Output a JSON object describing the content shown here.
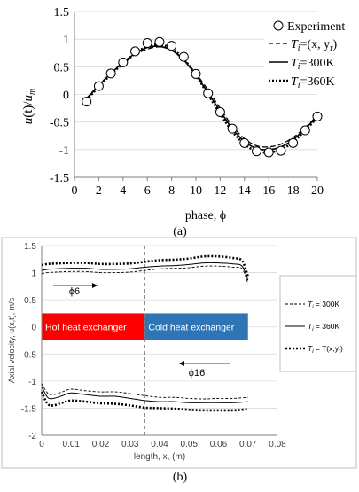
{
  "panel_a_label": "(a)",
  "panel_b_label": "(b)",
  "chart_data": [
    {
      "type": "line",
      "xlabel": "phase, ϕ",
      "ylabel": "u(t)/u_m",
      "ylabel_parts": {
        "u": "u",
        "t": "(t)/",
        "um": "u",
        "m": "m"
      },
      "xlim": [
        0,
        20
      ],
      "ylim": [
        -1.5,
        1.5
      ],
      "xticks": [
        "0",
        "2",
        "4",
        "6",
        "8",
        "10",
        "12",
        "14",
        "16",
        "18",
        "20"
      ],
      "yticks": [
        "1.5",
        "1",
        "0.5",
        "0",
        "-0.5",
        "-1",
        "-1.5"
      ],
      "legend": {
        "placement": "top-right",
        "entries": [
          {
            "label": "Experiment"
          },
          {
            "T": "T",
            "sub": "i",
            "rest": "=(x, y",
            "rsub": "r",
            "close": ")"
          },
          {
            "T": "T",
            "sub": "i",
            "rest": "=300K"
          },
          {
            "T": "T",
            "sub": "i",
            "rest": "=360K"
          }
        ]
      },
      "series": [
        {
          "name": "Experiment",
          "x": [
            1,
            2,
            3,
            4,
            5,
            6,
            7,
            8,
            9,
            10,
            11,
            12,
            13,
            14,
            15,
            16,
            17,
            18,
            19,
            20
          ],
          "y": [
            -0.13,
            0.15,
            0.38,
            0.58,
            0.78,
            0.93,
            0.95,
            0.88,
            0.68,
            0.37,
            0.02,
            -0.32,
            -0.62,
            -0.88,
            -1.03,
            -1.05,
            -1.02,
            -0.88,
            -0.65,
            -0.4
          ]
        },
        {
          "name": "Ti=(x, yr)",
          "x": [
            1,
            2,
            3,
            4,
            5,
            6,
            7,
            8,
            9,
            10,
            11,
            12,
            13,
            14,
            15,
            16,
            17,
            18,
            19,
            20
          ],
          "y": [
            -0.07,
            0.17,
            0.38,
            0.57,
            0.72,
            0.82,
            0.86,
            0.8,
            0.63,
            0.38,
            0.08,
            -0.25,
            -0.57,
            -0.8,
            -0.93,
            -0.95,
            -0.9,
            -0.78,
            -0.6,
            -0.38
          ]
        },
        {
          "name": "Ti=300K",
          "x": [
            1,
            2,
            3,
            4,
            5,
            6,
            7,
            8,
            9,
            10,
            11,
            12,
            13,
            14,
            15,
            16,
            17,
            18,
            19,
            20
          ],
          "y": [
            -0.08,
            0.16,
            0.38,
            0.58,
            0.74,
            0.85,
            0.87,
            0.8,
            0.62,
            0.35,
            0.03,
            -0.3,
            -0.62,
            -0.85,
            -0.98,
            -1.0,
            -0.95,
            -0.82,
            -0.62,
            -0.4
          ]
        },
        {
          "name": "Ti=360K",
          "x": [
            1,
            2,
            3,
            4,
            5,
            6,
            7,
            8,
            9,
            10,
            11,
            12,
            13,
            14,
            15,
            16,
            17,
            18,
            19,
            20
          ],
          "y": [
            -0.1,
            0.14,
            0.36,
            0.56,
            0.74,
            0.87,
            0.9,
            0.83,
            0.64,
            0.35,
            0.0,
            -0.35,
            -0.67,
            -0.9,
            -1.03,
            -1.05,
            -1.0,
            -0.86,
            -0.65,
            -0.42
          ]
        }
      ]
    },
    {
      "type": "line",
      "xlabel": "length, x, (m)",
      "ylabel": "Axial velocity, u(x,t), m/s",
      "xlim": [
        0,
        0.08
      ],
      "ylim": [
        -2,
        1.5
      ],
      "xticks": [
        "0",
        "0.01",
        "0.02",
        "0.03",
        "0.04",
        "0.05",
        "0.06",
        "0.07",
        "0.08"
      ],
      "yticks": [
        "1.5",
        "1",
        "0.5",
        "0",
        "-0.5",
        "-1",
        "-1.5",
        "-2"
      ],
      "divider_x": 0.035,
      "regions": [
        {
          "label": "Hot heat exchanger",
          "x0": 0,
          "x1": 0.035,
          "color": "#ff0000"
        },
        {
          "label": "Cold heat exchanger",
          "x0": 0.035,
          "x1": 0.07,
          "color": "#2e75b6"
        }
      ],
      "annotations": [
        {
          "label": "ϕ6",
          "direction": "right"
        },
        {
          "label": "ϕ16",
          "direction": "left"
        }
      ],
      "legend": {
        "placement": "right",
        "entries": [
          {
            "T": "T",
            "sub": "i",
            "rest": " = 300K"
          },
          {
            "T": "T",
            "sub": "i",
            "rest": " = 360K"
          },
          {
            "T": "T",
            "sub": "i",
            "rest": " = T(x,y",
            "rsub": "r",
            "close": ")"
          }
        ]
      },
      "series": [
        {
          "name": "Ti = 300K (phi6)",
          "x": [
            0,
            0.002,
            0.005,
            0.01,
            0.015,
            0.02,
            0.025,
            0.03,
            0.035,
            0.04,
            0.045,
            0.05,
            0.055,
            0.06,
            0.065,
            0.068,
            0.07
          ],
          "y": [
            0.98,
            1.0,
            1.01,
            1.02,
            1.02,
            1.0,
            1.0,
            1.01,
            1.04,
            1.07,
            1.08,
            1.09,
            1.12,
            1.12,
            1.1,
            1.07,
            0.8
          ]
        },
        {
          "name": "Ti = 360K (phi6)",
          "x": [
            0,
            0.002,
            0.005,
            0.01,
            0.015,
            0.02,
            0.025,
            0.03,
            0.035,
            0.04,
            0.045,
            0.05,
            0.055,
            0.06,
            0.065,
            0.068,
            0.07
          ],
          "y": [
            1.04,
            1.06,
            1.07,
            1.08,
            1.08,
            1.06,
            1.06,
            1.07,
            1.1,
            1.12,
            1.13,
            1.15,
            1.18,
            1.18,
            1.16,
            1.12,
            0.86
          ]
        },
        {
          "name": "Ti = T(x,yr) (phi6)",
          "x": [
            0,
            0.002,
            0.005,
            0.01,
            0.015,
            0.02,
            0.025,
            0.03,
            0.035,
            0.04,
            0.045,
            0.05,
            0.055,
            0.06,
            0.065,
            0.068,
            0.07
          ],
          "y": [
            1.14,
            1.16,
            1.17,
            1.18,
            1.18,
            1.16,
            1.16,
            1.17,
            1.2,
            1.23,
            1.24,
            1.26,
            1.3,
            1.3,
            1.27,
            1.22,
            0.93
          ]
        },
        {
          "name": "Ti = 300K (phi16)",
          "x": [
            0,
            0.002,
            0.004,
            0.007,
            0.01,
            0.015,
            0.02,
            0.025,
            0.03,
            0.035,
            0.04,
            0.045,
            0.05,
            0.055,
            0.06,
            0.065,
            0.07
          ],
          "y": [
            -1.05,
            -1.22,
            -1.25,
            -1.2,
            -1.15,
            -1.18,
            -1.2,
            -1.2,
            -1.23,
            -1.27,
            -1.3,
            -1.3,
            -1.32,
            -1.33,
            -1.32,
            -1.32,
            -1.3
          ]
        },
        {
          "name": "Ti = 360K (phi16)",
          "x": [
            0,
            0.002,
            0.004,
            0.007,
            0.01,
            0.015,
            0.02,
            0.025,
            0.03,
            0.035,
            0.04,
            0.045,
            0.05,
            0.055,
            0.06,
            0.065,
            0.07
          ],
          "y": [
            -1.1,
            -1.3,
            -1.32,
            -1.27,
            -1.22,
            -1.25,
            -1.28,
            -1.28,
            -1.32,
            -1.36,
            -1.38,
            -1.38,
            -1.4,
            -1.4,
            -1.4,
            -1.4,
            -1.38
          ]
        },
        {
          "name": "Ti = T(x,yr) (phi16)",
          "x": [
            0,
            0.002,
            0.004,
            0.007,
            0.01,
            0.015,
            0.02,
            0.025,
            0.03,
            0.035,
            0.04,
            0.045,
            0.05,
            0.055,
            0.06,
            0.065,
            0.07
          ],
          "y": [
            -1.2,
            -1.42,
            -1.45,
            -1.4,
            -1.36,
            -1.38,
            -1.41,
            -1.42,
            -1.45,
            -1.49,
            -1.5,
            -1.51,
            -1.53,
            -1.54,
            -1.54,
            -1.54,
            -1.52
          ]
        }
      ]
    }
  ]
}
